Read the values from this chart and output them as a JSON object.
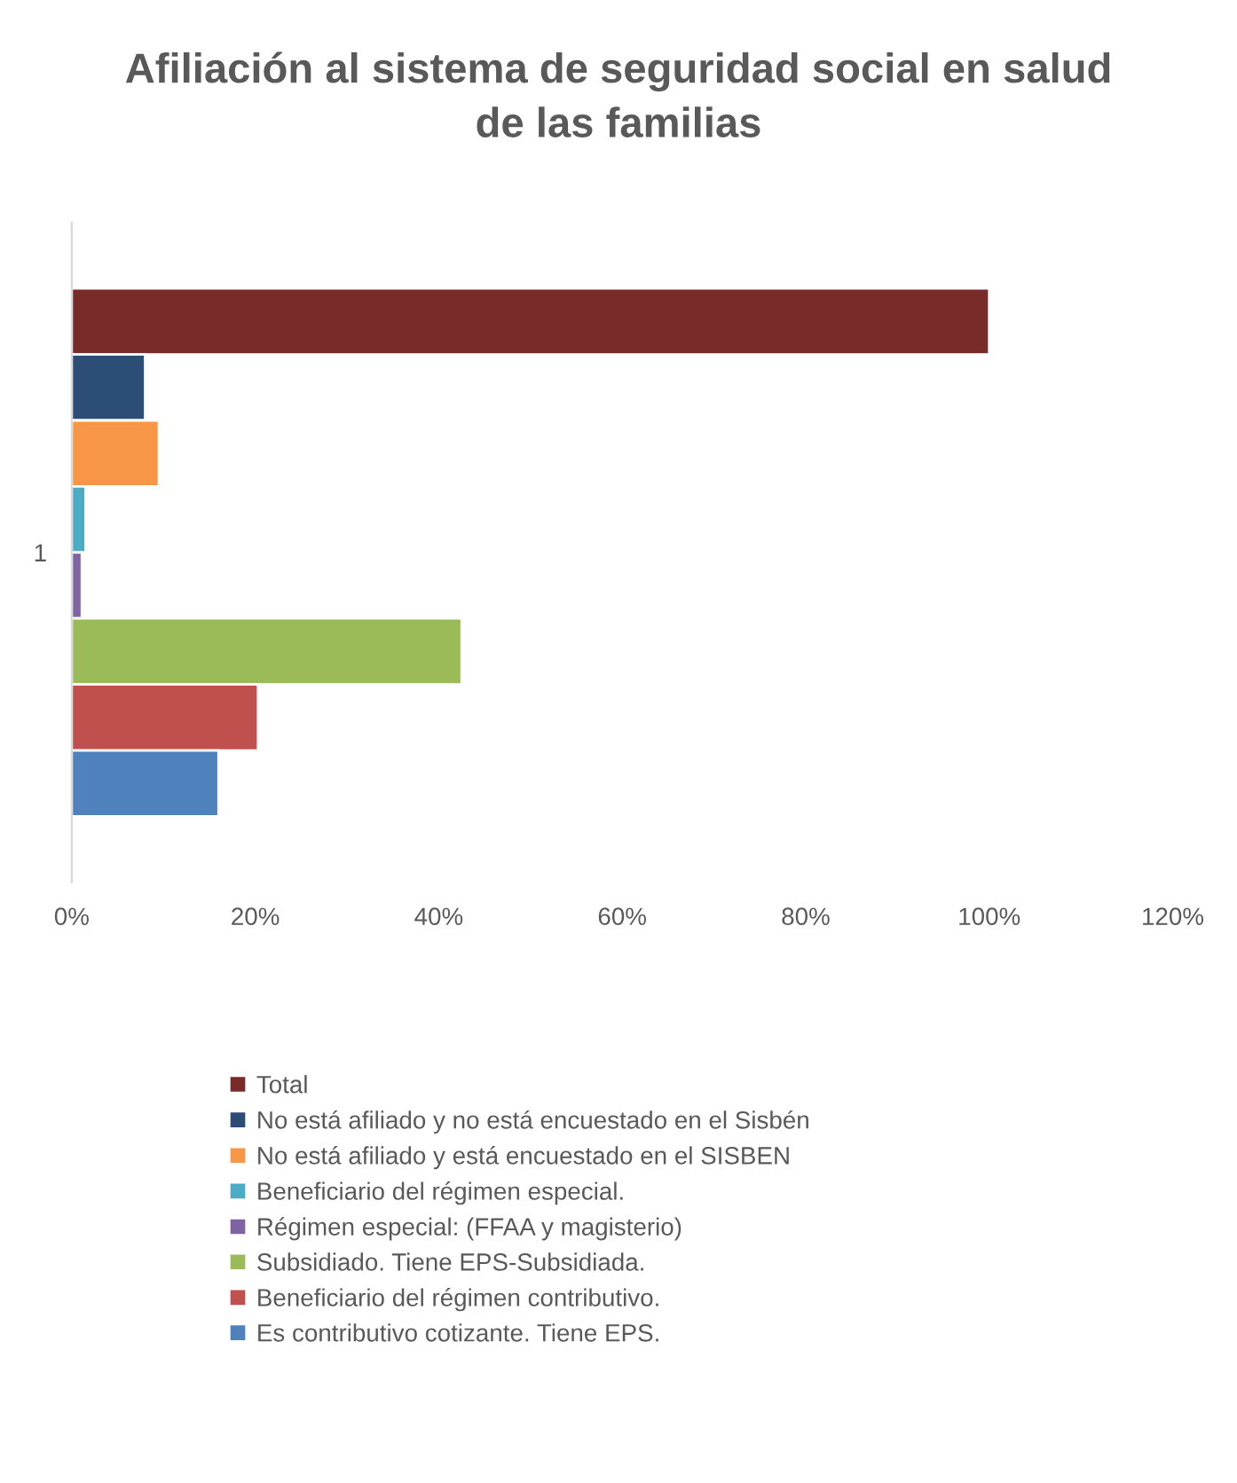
{
  "chart_data": {
    "type": "bar",
    "orientation": "horizontal",
    "title": "Afiliación al sistema de seguridad social en salud\nde las familias",
    "categories": [
      "1"
    ],
    "series": [
      {
        "name": "Total",
        "color": "#772c2a",
        "values": [
          100
        ]
      },
      {
        "name": "No está afiliado y no está encuestado en el Sisbén",
        "color": "#2c4d75",
        "values": [
          8.0
        ]
      },
      {
        "name": "No está afiliado y está encuestado en el SISBEN",
        "color": "#f79646",
        "values": [
          9.5
        ]
      },
      {
        "name": "Beneficiario del régimen especial.",
        "color": "#4bacc6",
        "values": [
          1.5
        ]
      },
      {
        "name": "Régimen especial: (FFAA y magisterio)",
        "color": "#8064a2",
        "values": [
          1.1
        ]
      },
      {
        "name": "Subsidiado. Tiene EPS-Subsidiada.",
        "color": "#9bbb59",
        "values": [
          42.5
        ]
      },
      {
        "name": "Beneficiario del régimen contributivo.",
        "color": "#c0504d",
        "values": [
          20.3
        ]
      },
      {
        "name": "Es contributivo cotizante. Tiene EPS.",
        "color": "#4f81bd",
        "values": [
          16.0
        ]
      }
    ],
    "xlim": [
      0,
      120
    ],
    "xticks": [
      {
        "value": 0,
        "label": "0%"
      },
      {
        "value": 20,
        "label": "20%"
      },
      {
        "value": 40,
        "label": "40%"
      },
      {
        "value": 60,
        "label": "60%"
      },
      {
        "value": 80,
        "label": "80%"
      },
      {
        "value": 100,
        "label": "100%"
      },
      {
        "value": 120,
        "label": "120%"
      }
    ],
    "legend": "bottom",
    "grid": false
  }
}
